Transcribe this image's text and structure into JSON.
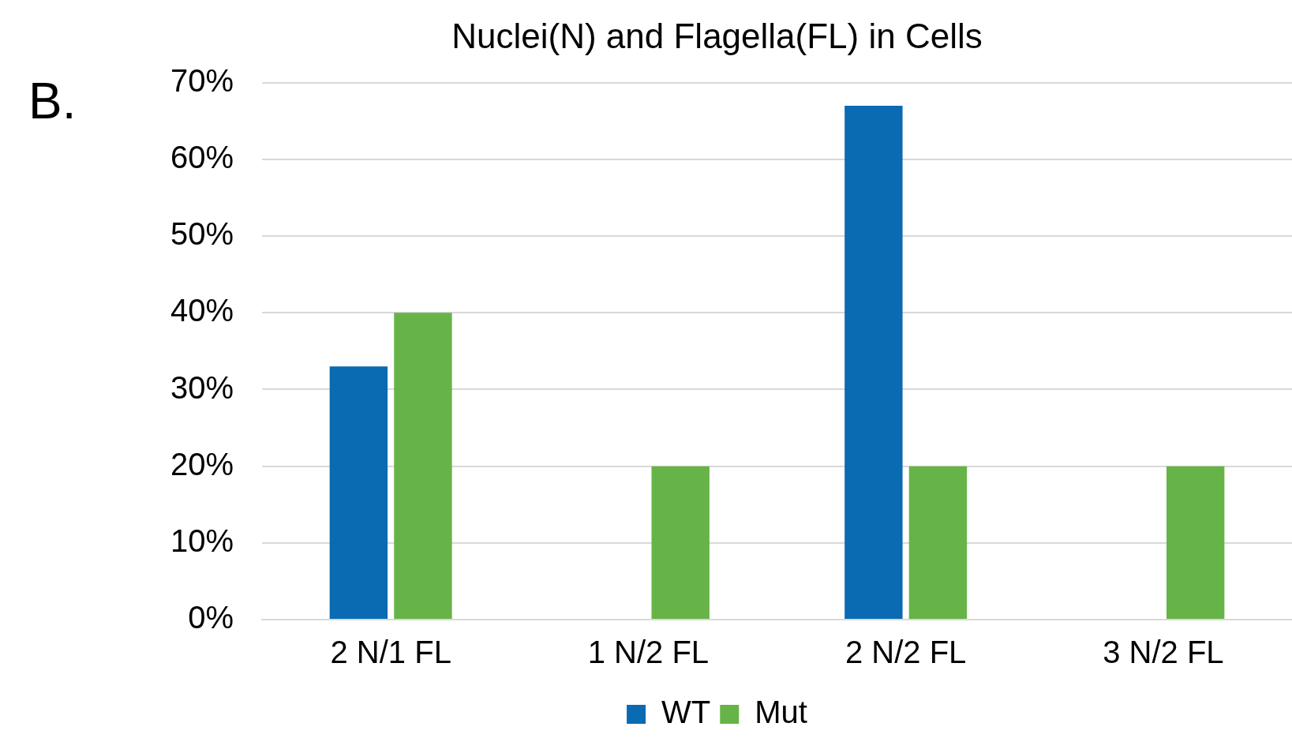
{
  "chart_data": {
    "type": "bar",
    "title": "Nuclei(N) and Flagella(FL) in Cells",
    "annotations": [
      "B."
    ],
    "categories": [
      "2 N/1 FL",
      "1 N/2 FL",
      "2 N/2 FL",
      "3 N/2 FL"
    ],
    "series": [
      {
        "name": "WT",
        "color": "#0a6ab2",
        "values": [
          33,
          0,
          67,
          0
        ]
      },
      {
        "name": "Mut",
        "color": "#66b447",
        "values": [
          40,
          20,
          20,
          20
        ]
      }
    ],
    "ylim": [
      0,
      70
    ],
    "yticks": [
      {
        "value": 0,
        "label": "0%"
      },
      {
        "value": 10,
        "label": "10%"
      },
      {
        "value": 20,
        "label": "20%"
      },
      {
        "value": 30,
        "label": "30%"
      },
      {
        "value": 40,
        "label": "40%"
      },
      {
        "value": 50,
        "label": "50%"
      },
      {
        "value": 60,
        "label": "60%"
      },
      {
        "value": 70,
        "label": "70%"
      }
    ],
    "grid": "y",
    "legend": "bottom"
  }
}
